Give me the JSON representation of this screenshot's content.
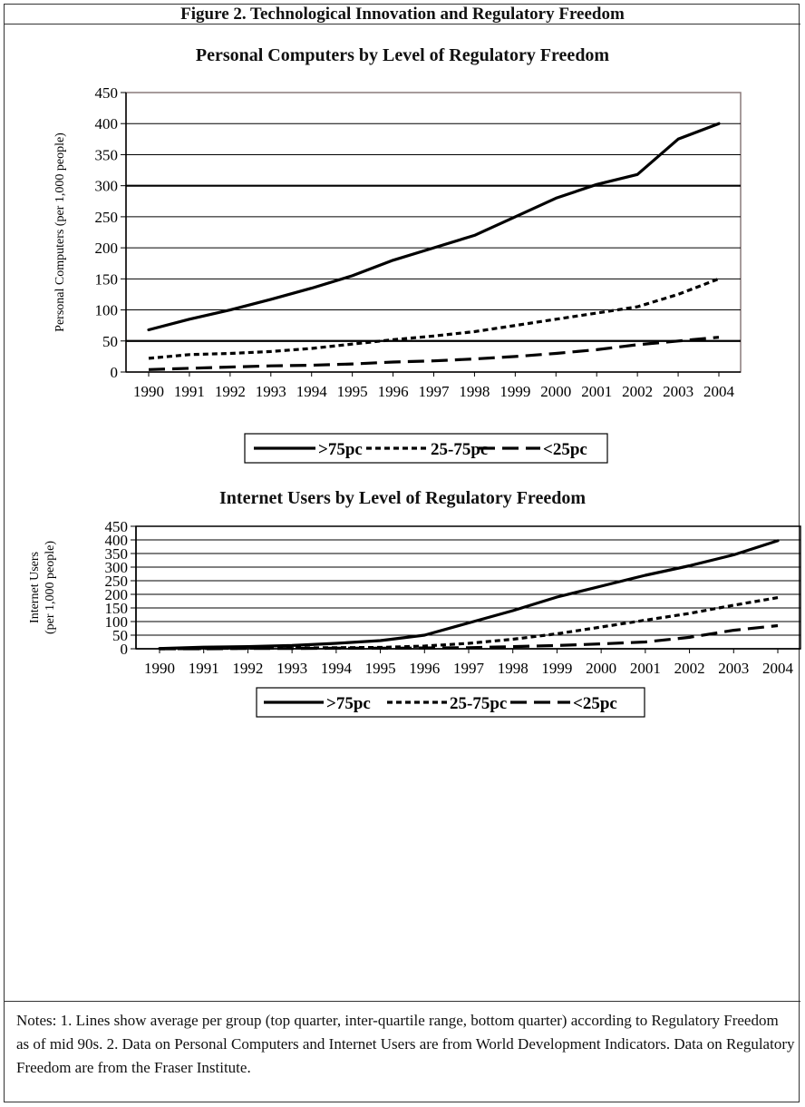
{
  "figure": {
    "title": "Figure 2.  Technological Innovation and Regulatory Freedom",
    "notes": "Notes: 1. Lines show average per group (top quarter, inter-quartile range, bottom quarter) according to Regulatory Freedom as of mid 90s. 2. Data on Personal Computers and Internet Users are from World Development Indicators. Data on Regulatory Freedom are from the Fraser Institute."
  },
  "chart_data": [
    {
      "type": "line",
      "title": "Personal Computers by Level of Regulatory Freedom",
      "ylabel": "Personal Computers (per 1,000 people)",
      "ylabel_note": "printed with scrambled, vertically stacked letters in the original",
      "categories": [
        "1990",
        "1991",
        "1992",
        "1993",
        "1994",
        "1995",
        "1996",
        "1997",
        "1998",
        "1999",
        "2000",
        "2001",
        "2002",
        "2003",
        "2004"
      ],
      "ylim": [
        0,
        450
      ],
      "yticks": [
        0,
        50,
        100,
        150,
        200,
        250,
        300,
        350,
        400,
        450
      ],
      "grid": true,
      "legend_position": "bottom",
      "series": [
        {
          "name": ">75pc",
          "style": "solid",
          "values": [
            68,
            85,
            100,
            117,
            135,
            155,
            180,
            200,
            220,
            250,
            280,
            302,
            318,
            375,
            400
          ]
        },
        {
          "name": "25-75pc",
          "style": "short-dash",
          "values": [
            22,
            28,
            30,
            33,
            38,
            45,
            52,
            58,
            65,
            75,
            85,
            95,
            105,
            125,
            150
          ]
        },
        {
          "name": "<25pc",
          "style": "long-dash",
          "values": [
            4,
            6,
            8,
            10,
            11,
            13,
            16,
            18,
            21,
            25,
            30,
            36,
            44,
            50,
            56
          ]
        }
      ]
    },
    {
      "type": "line",
      "title": "Internet Users by Level of Regulatory Freedom",
      "ylabel": "Internet Users\n(per 1,000 people)",
      "categories": [
        "1990",
        "1991",
        "1992",
        "1993",
        "1994",
        "1995",
        "1996",
        "1997",
        "1998",
        "1999",
        "2000",
        "2001",
        "2002",
        "2003",
        "2004"
      ],
      "ylim": [
        0,
        450
      ],
      "yticks": [
        0,
        50,
        100,
        150,
        200,
        250,
        300,
        350,
        400,
        450
      ],
      "grid": true,
      "legend_position": "bottom",
      "series": [
        {
          "name": ">75pc",
          "style": "solid",
          "values": [
            1,
            6,
            8,
            12,
            20,
            30,
            50,
            95,
            140,
            190,
            230,
            270,
            305,
            345,
            397
          ]
        },
        {
          "name": "25-75pc",
          "style": "short-dash",
          "values": [
            0,
            1,
            2,
            3,
            4,
            5,
            10,
            20,
            35,
            55,
            80,
            105,
            130,
            160,
            188
          ]
        },
        {
          "name": "<25pc",
          "style": "long-dash",
          "values": [
            0,
            0,
            1,
            1,
            2,
            2,
            3,
            4,
            8,
            12,
            18,
            25,
            42,
            68,
            85
          ]
        }
      ]
    }
  ]
}
